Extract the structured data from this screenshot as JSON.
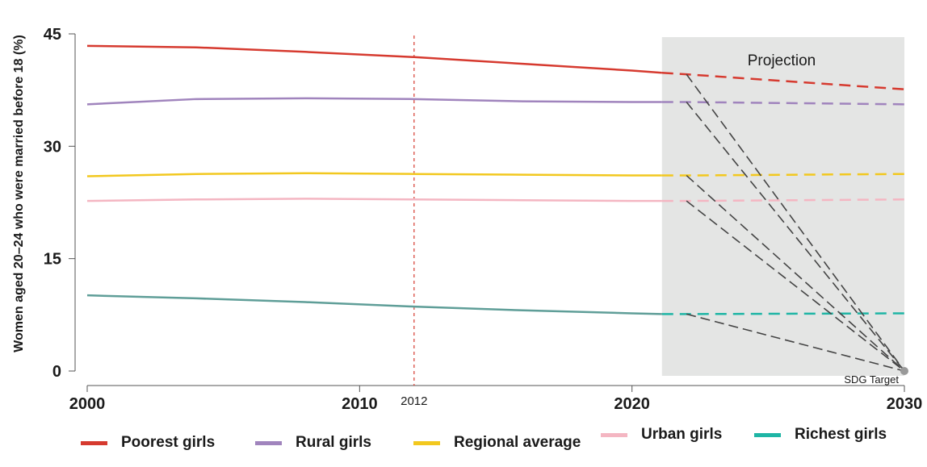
{
  "chart_data": {
    "type": "line",
    "ylabel": "Women aged 20–24 who were married before 18 (%)",
    "xlabel": "",
    "xlim": [
      2000,
      2030
    ],
    "ylim": [
      0,
      45
    ],
    "x_ticks": [
      "2000",
      "2010",
      "2020",
      "2030"
    ],
    "y_ticks": [
      "0",
      "15",
      "30",
      "45"
    ],
    "projection": {
      "label": "Projection",
      "x_start": 2021.1,
      "x_end": 2030
    },
    "marker_year": {
      "label": "2012",
      "x": 2012
    },
    "sdg_target": {
      "label": "SDG Target",
      "x": 2030,
      "y": 0
    },
    "colors": {
      "poorest": "#d63a2f",
      "rural": "#a084bd",
      "regional": "#f2c81f",
      "urban": "#f4b6c2",
      "richest": "#1fb5a5",
      "historical_richest": "#5f9e98",
      "projection_band": "#e4e5e4",
      "marker_line": "#d63a2f",
      "target_lines": "#444444"
    },
    "series": [
      {
        "name": "Poorest girls",
        "key": "poorest",
        "x": [
          2000,
          2004,
          2008,
          2012,
          2016,
          2020,
          2021.1
        ],
        "y": [
          43.4,
          43.2,
          42.6,
          41.9,
          41.0,
          40.1,
          39.8
        ],
        "projection_x": [
          2021.1,
          2022,
          2030
        ],
        "projection_y": [
          39.8,
          39.6,
          37.6
        ]
      },
      {
        "name": "Rural girls",
        "key": "rural",
        "x": [
          2000,
          2004,
          2008,
          2012,
          2016,
          2020,
          2021.1
        ],
        "y": [
          35.6,
          36.3,
          36.4,
          36.3,
          36.0,
          35.9,
          35.9
        ],
        "projection_x": [
          2021.1,
          2022,
          2030
        ],
        "projection_y": [
          35.9,
          35.9,
          35.6
        ]
      },
      {
        "name": "Regional average",
        "key": "regional",
        "x": [
          2000,
          2004,
          2008,
          2012,
          2016,
          2020,
          2021.1
        ],
        "y": [
          26.0,
          26.3,
          26.4,
          26.3,
          26.2,
          26.1,
          26.1
        ],
        "projection_x": [
          2021.1,
          2022,
          2030
        ],
        "projection_y": [
          26.1,
          26.1,
          26.3
        ]
      },
      {
        "name": "Urban girls",
        "key": "urban",
        "x": [
          2000,
          2004,
          2008,
          2012,
          2016,
          2020,
          2021.1
        ],
        "y": [
          22.7,
          22.9,
          23.0,
          22.9,
          22.8,
          22.7,
          22.7
        ],
        "projection_x": [
          2021.1,
          2022,
          2030
        ],
        "projection_y": [
          22.7,
          22.7,
          22.9
        ]
      },
      {
        "name": "Richest girls",
        "key": "richest",
        "x": [
          2000,
          2004,
          2008,
          2012,
          2016,
          2020,
          2021.1
        ],
        "y": [
          10.1,
          9.7,
          9.2,
          8.6,
          8.1,
          7.7,
          7.6
        ],
        "projection_x": [
          2021.1,
          2022,
          2030
        ],
        "projection_y": [
          7.6,
          7.6,
          7.7
        ]
      }
    ]
  }
}
